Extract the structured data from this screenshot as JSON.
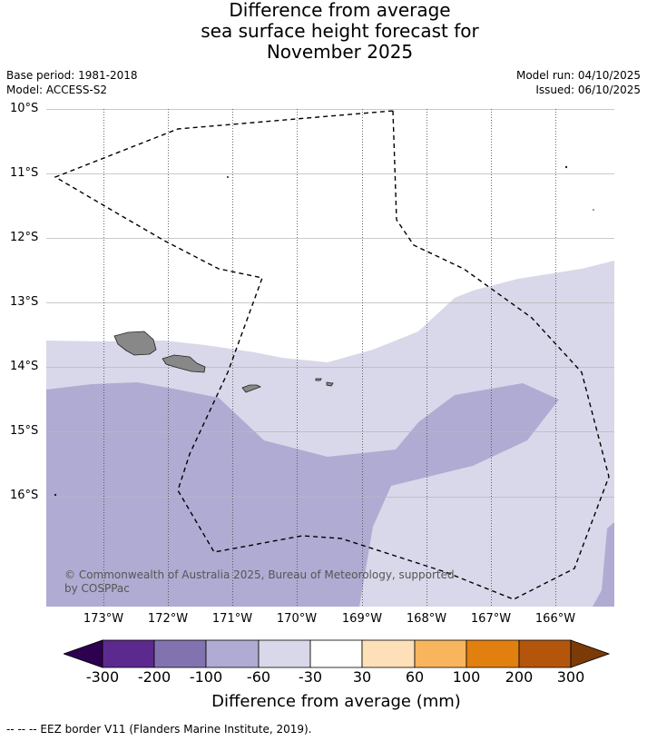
{
  "title": {
    "line1": "Difference from average",
    "line2": "sea surface height forecast for",
    "line3": "November 2025"
  },
  "meta": {
    "base_period": "Base period: 1981-2018",
    "model": "Model: ACCESS-S2",
    "model_run": "Model run: 04/10/2025",
    "issued": "Issued: 06/10/2025"
  },
  "map": {
    "lat_labels": [
      "10°S",
      "11°S",
      "12°S",
      "13°S",
      "14°S",
      "15°S",
      "16°S"
    ],
    "lon_labels": [
      "173°W",
      "172°W",
      "171°W",
      "170°W",
      "169°W",
      "168°W",
      "167°W",
      "166°W"
    ],
    "copyright_line1": "© Commonwealth of Australia 2025, Bureau of Meteorology, supported",
    "copyright_line2": "by COSPPac",
    "colors": {
      "band_neg100_neg60": "#b0abd2",
      "band_neg60_neg30": "#d8d8ea",
      "band_neg30_30": "#ffffff",
      "land": "#888888",
      "grid": "#333333"
    }
  },
  "colorbar": {
    "labels": [
      "-300",
      "-200",
      "-100",
      "-60",
      "-30",
      "30",
      "60",
      "100",
      "200",
      "300"
    ],
    "colors": [
      "#2d0050",
      "#5c2a8e",
      "#8273b0",
      "#b0abd2",
      "#d8d8ea",
      "#ffffff",
      "#fde0b8",
      "#f9b55e",
      "#e2800f",
      "#b3560c",
      "#7b3a06"
    ],
    "title": "Difference from average (mm)"
  },
  "footnote": "-- -- -- EEZ border V11 (Flanders Marine Institute, 2019)."
}
